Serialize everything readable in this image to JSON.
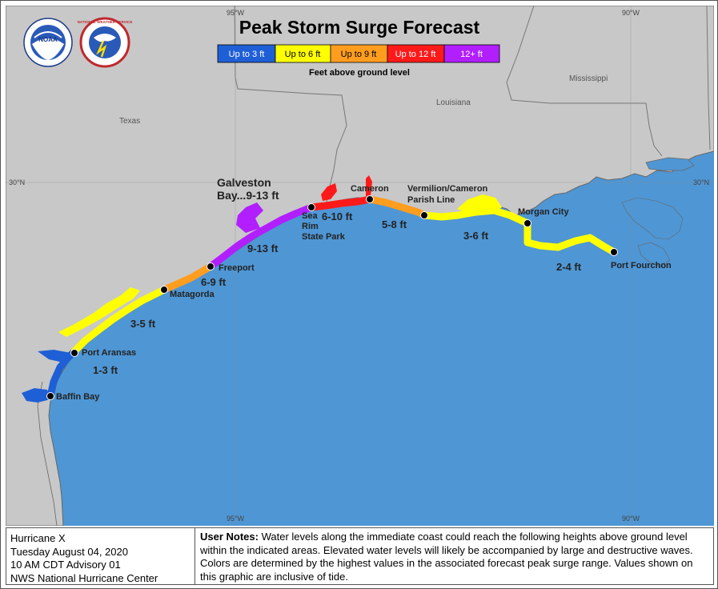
{
  "title": "Peak Storm Surge Forecast",
  "legend": {
    "items": [
      {
        "label": "Up to 3 ft",
        "color": "#1f5fd6"
      },
      {
        "label": "Up to 6 ft",
        "color": "#ffff00"
      },
      {
        "label": "Up to 9 ft",
        "color": "#ff9d1f"
      },
      {
        "label": "Up to 12 ft",
        "color": "#ff1a1a"
      },
      {
        "label": "12+ ft",
        "color": "#b21fff"
      }
    ],
    "subtitle": "Feet above ground level"
  },
  "logos": {
    "noaa": "NOAA",
    "nws": "NATIONAL WEATHER SERVICE"
  },
  "map": {
    "colors": {
      "water": "#4f96d4",
      "land": "#c8c8c8",
      "border": "#777777"
    },
    "graticule": {
      "top_95": "95°W",
      "top_90": "90°W",
      "bottom_95": "95°W",
      "bottom_90": "90°W",
      "left_30": "30°N",
      "right_30": "30°N"
    },
    "states": {
      "texas": "Texas",
      "louisiana": "Louisiana",
      "mississippi": "Mississippi"
    },
    "cities": {
      "baffin": "Baffin Bay",
      "aransas": "Port Aransas",
      "matagorda": "Matagorda",
      "freeport": "Freeport",
      "sea_rim_1": "Sea",
      "sea_rim_2": "Rim",
      "sea_rim_3": "State Park",
      "cameron": "Cameron",
      "vermilion_1": "Vermilion/Cameron",
      "vermilion_2": "Parish Line",
      "morgan": "Morgan City",
      "fourchon": "Port Fourchon"
    },
    "surge_labels": {
      "s1": "1-3 ft",
      "s2": "3-5 ft",
      "s3": "6-9 ft",
      "s4": "9-13 ft",
      "galveston_1": "Galveston",
      "galveston_2": "Bay...9-13 ft",
      "s5": "6-10 ft",
      "s6": "5-8 ft",
      "s7": "3-6 ft",
      "s8": "2-4 ft"
    }
  },
  "footer": {
    "storm": "Hurricane X",
    "date": "Tuesday August 04, 2020",
    "advisory": "10 AM CDT Advisory 01",
    "issuer": "NWS National Hurricane Center",
    "notes_label": "User Notes:",
    "notes_text": " Water levels along the immediate coast could reach the following heights above ground level within the indicated areas. Elevated water levels will likely be accompanied by large and destructive waves. Colors are determined by the highest values in the associated forecast peak surge range. Values shown on this graphic are inclusive of tide."
  }
}
